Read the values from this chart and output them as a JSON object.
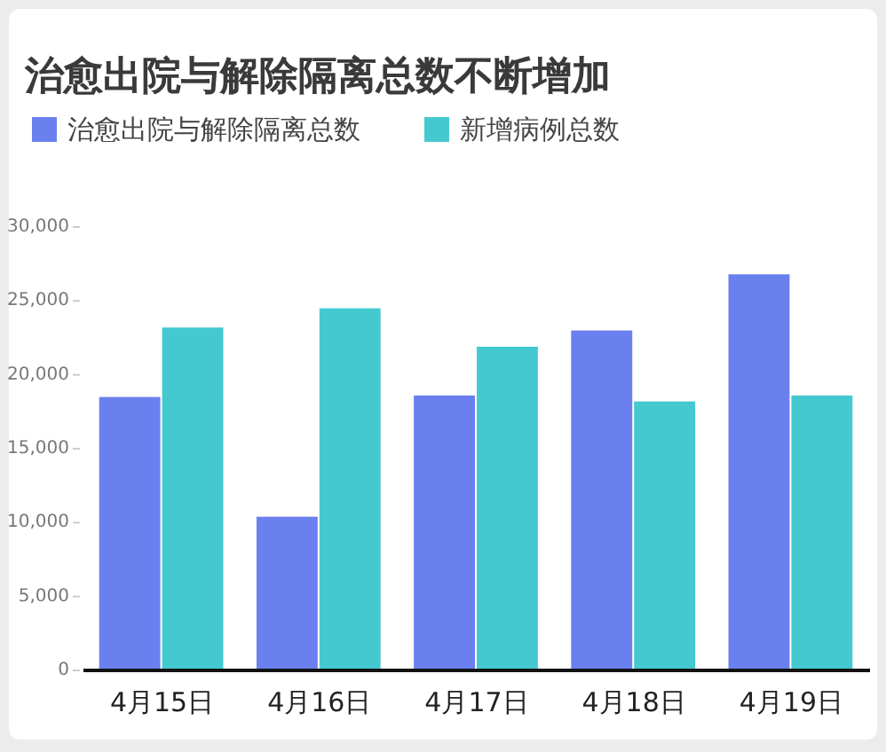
{
  "chart_data": {
    "type": "bar",
    "title": "治愈出院与解除隔离总数不断增加",
    "categories": [
      "4月15日",
      "4月16日",
      "4月17日",
      "4月18日",
      "4月19日"
    ],
    "series": [
      {
        "name": "治愈出院与解除隔离总数",
        "color": "#6b80ef",
        "values": [
          18500,
          10400,
          18600,
          23000,
          26800
        ]
      },
      {
        "name": "新增病例总数",
        "color": "#45c9d1",
        "values": [
          23200,
          24500,
          21900,
          18200,
          18600
        ]
      }
    ],
    "ylim": [
      0,
      30000
    ],
    "yticks": [
      0,
      {
        "value": 5000,
        "label": "5,000"
      },
      {
        "value": 10000,
        "label": "10,000"
      },
      {
        "value": 15000,
        "label": "15,000"
      },
      {
        "value": 20000,
        "label": "20,000"
      },
      {
        "value": 25000,
        "label": "25,000"
      },
      {
        "value": 30000,
        "label": "30,000"
      }
    ],
    "legend": "top"
  }
}
